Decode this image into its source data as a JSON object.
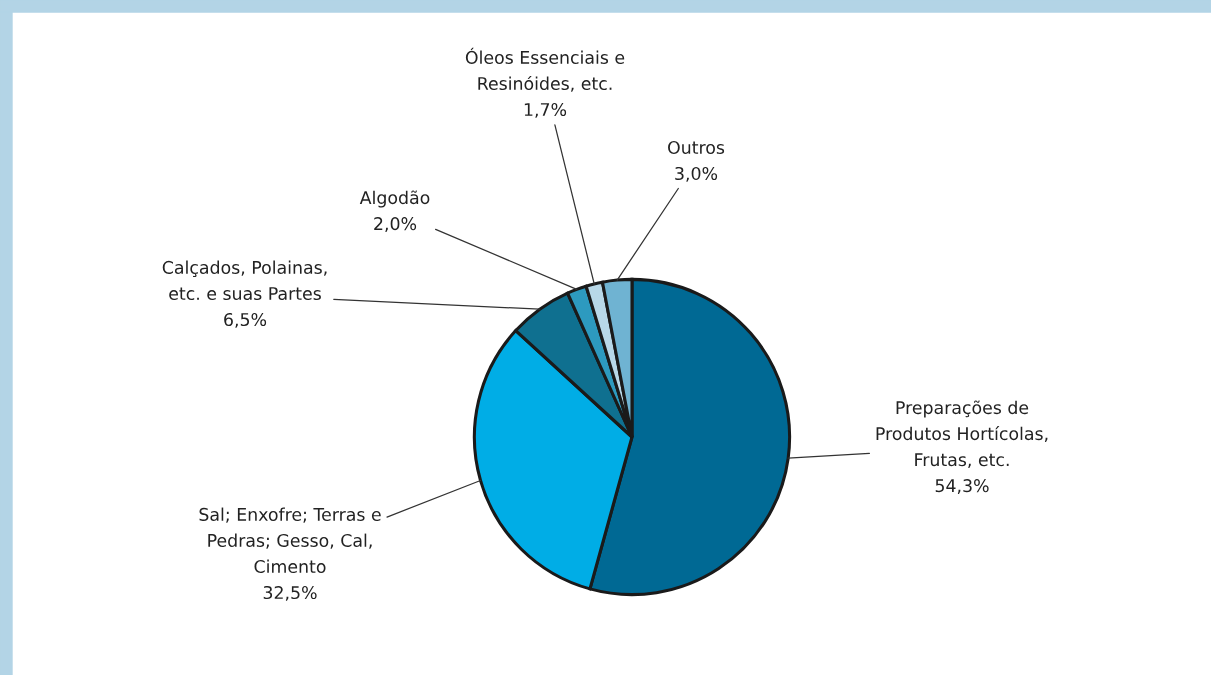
{
  "chart_data": {
    "type": "pie",
    "categories": [
      "Preparações de\nProdutos Hortícolas,\nFrutas, etc.",
      "Sal; Enxofre; Terras e\nPedras; Gesso, Cal,\nCimento",
      "Calçados, Polainas,\netc. e suas Partes",
      "Algodão",
      "Óleos Essenciais e\nResinóides, etc.",
      "Outros"
    ],
    "values": [
      54.3,
      32.5,
      6.5,
      2.0,
      1.7,
      3.0
    ],
    "value_labels": [
      "54,3%",
      "32,5%",
      "6,5%",
      "2,0%",
      "1,7%",
      "3,0%"
    ],
    "colors": [
      "#006994",
      "#00ade6",
      "#0f7090",
      "#2d9abf",
      "#b8d8e8",
      "#6fb3d2"
    ]
  }
}
